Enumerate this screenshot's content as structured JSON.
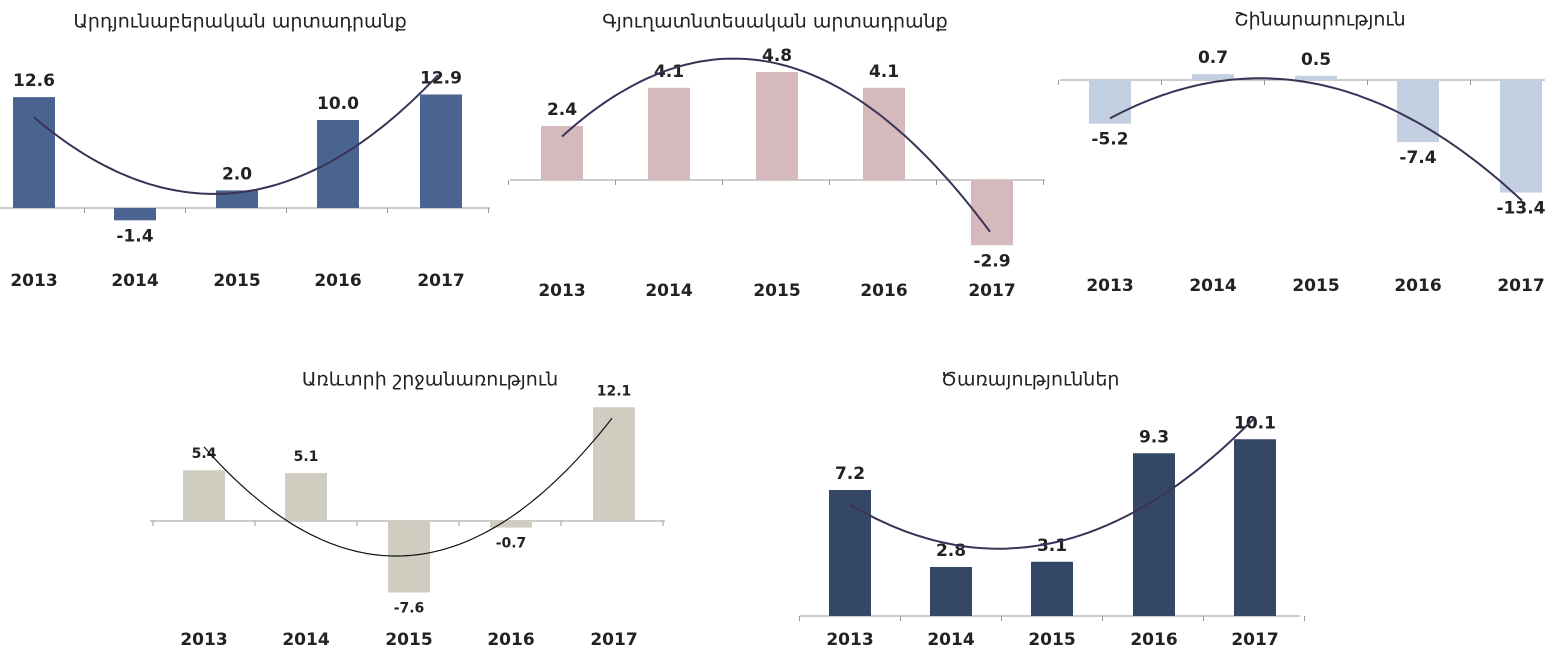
{
  "chart_data": [
    {
      "type": "bar",
      "title": "Արդյունաբերական արտադրանք",
      "categories": [
        "2013",
        "2014",
        "2015",
        "2016",
        "2017"
      ],
      "values": [
        12.6,
        -1.4,
        2.0,
        10.0,
        12.9
      ],
      "value_labels": [
        "12.6",
        "-1.4",
        "2.0",
        "10.0",
        "12.9"
      ],
      "color": "#4a6391",
      "trend_color": "#3b3355"
    },
    {
      "type": "bar",
      "title": "Գյուղատնտեսական արտադրանք",
      "categories": [
        "2013",
        "2014",
        "2015",
        "2016",
        "2017"
      ],
      "values": [
        2.4,
        4.1,
        4.8,
        4.1,
        -2.9
      ],
      "color": "#d5b9bc",
      "trend_color": "#3b3355"
    },
    {
      "type": "bar",
      "title": "Շինարարություն",
      "categories": [
        "2013",
        "2014",
        "2015",
        "2016",
        "2017"
      ],
      "values": [
        -5.2,
        0.7,
        0.5,
        -7.4,
        -13.4
      ],
      "color": "#c3d0e1",
      "trend_color": "#3b3355"
    },
    {
      "type": "bar",
      "title": "Առևտրի շրջանառություն",
      "categories": [
        "2013",
        "2014",
        "2015",
        "2016",
        "2017"
      ],
      "values": [
        5.4,
        5.1,
        -7.6,
        -0.7,
        12.1
      ],
      "color": "#cecdc0",
      "trend_color": "#111111"
    },
    {
      "type": "bar",
      "title": "Ծառայություններ",
      "categories": [
        "2013",
        "2014",
        "2015",
        "2016",
        "2017"
      ],
      "values": [
        7.2,
        2.8,
        3.1,
        9.3,
        10.1
      ],
      "color": "#354766",
      "trend_color": "#3b3355"
    }
  ]
}
